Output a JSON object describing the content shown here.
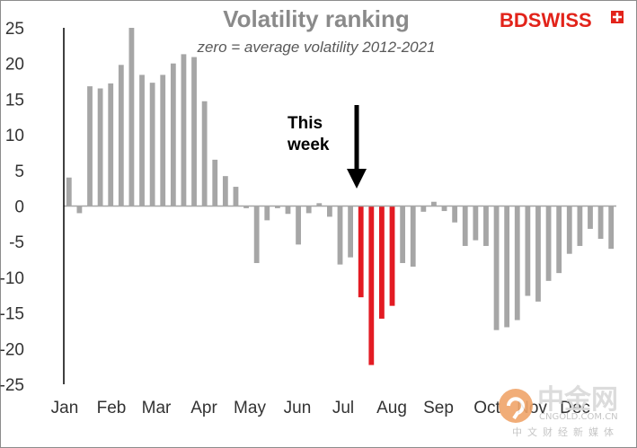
{
  "chart_data": {
    "type": "bar",
    "title": "Volatility ranking",
    "subtitle": "zero = average volatility 2012-2021",
    "ylim": [
      -25,
      25
    ],
    "yticks": [
      25,
      20,
      15,
      10,
      5,
      0,
      -5,
      -10,
      -15,
      -20,
      -25
    ],
    "xlabel": "",
    "ylabel": "",
    "month_labels": [
      "Jan",
      "Feb",
      "Mar",
      "Apr",
      "May",
      "Jun",
      "Jul",
      "Aug",
      "Sep",
      "Oct",
      "Nov",
      "Dec"
    ],
    "values": [
      4,
      -1,
      16.8,
      16.5,
      17.2,
      19.8,
      25,
      18.4,
      17.3,
      18.4,
      20,
      21.3,
      20.9,
      14.7,
      6.5,
      4.2,
      2.7,
      -0.3,
      -8,
      -2,
      -0.3,
      -1.1,
      -5.4,
      -1,
      0.4,
      -1.5,
      -8.2,
      -7.2,
      -12.8,
      -22.3,
      -15.8,
      -14,
      -8,
      -8.5,
      -0.8,
      0.6,
      -0.7,
      -2.3,
      -5.6,
      -4.8,
      -5.6,
      -17.4,
      -17,
      -16,
      -12.6,
      -13.4,
      -10.5,
      -9.4,
      -6.7,
      -5.6,
      -3.2,
      -4.6,
      -6
    ],
    "highlight": [
      28,
      29,
      30,
      31
    ],
    "colors": {
      "bar": "#a6a6a6",
      "highlight": "#e31b23",
      "axis": "#000000",
      "zero_line": "#a6a6a6"
    },
    "annotation": {
      "line1": "This",
      "line2": "week"
    }
  },
  "logo": {
    "part1": "BD",
    "part2": "SWISS"
  },
  "watermark": {
    "main": "中金网",
    "sub": "CNGOLD.COM.CN",
    "cn": "中文财经新媒体"
  }
}
